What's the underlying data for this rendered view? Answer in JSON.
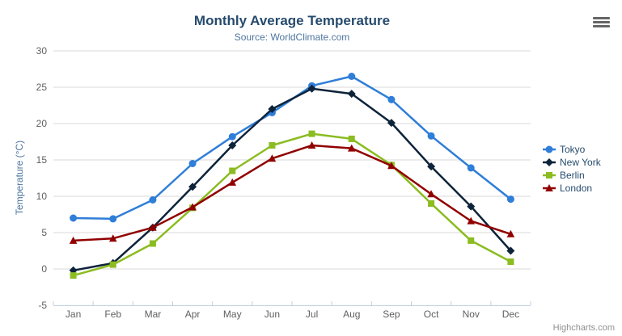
{
  "export_menu": {
    "icon": "hamburger-icon"
  },
  "credits": {
    "label": "Highcharts.com"
  },
  "chart_data": {
    "type": "line",
    "title": "Monthly Average Temperature",
    "subtitle": "Source: WorldClimate.com",
    "categories": [
      "Jan",
      "Feb",
      "Mar",
      "Apr",
      "May",
      "Jun",
      "Jul",
      "Aug",
      "Sep",
      "Oct",
      "Nov",
      "Dec"
    ],
    "series": [
      {
        "name": "Tokyo",
        "color": "#2f7ed8",
        "marker": "circle",
        "values": [
          7.0,
          6.9,
          9.5,
          14.5,
          18.2,
          21.5,
          25.2,
          26.5,
          23.3,
          18.3,
          13.9,
          9.6
        ]
      },
      {
        "name": "New York",
        "color": "#0d233a",
        "marker": "diamond",
        "values": [
          -0.2,
          0.8,
          5.7,
          11.3,
          17.0,
          22.0,
          24.8,
          24.1,
          20.1,
          14.1,
          8.6,
          2.5
        ]
      },
      {
        "name": "Berlin",
        "color": "#8bbc21",
        "marker": "square",
        "values": [
          -0.9,
          0.6,
          3.5,
          8.4,
          13.5,
          17.0,
          18.6,
          17.9,
          14.3,
          9.0,
          3.9,
          1.0
        ]
      },
      {
        "name": "London",
        "color": "#910000",
        "marker": "triangle",
        "values": [
          3.9,
          4.2,
          5.7,
          8.5,
          11.9,
          15.2,
          17.0,
          16.6,
          14.2,
          10.3,
          6.6,
          4.8
        ]
      }
    ],
    "xlabel": "",
    "ylabel": "Temperature (°C)",
    "ylim": [
      -5,
      30
    ],
    "ytick_step": 5,
    "grid": true,
    "legend_position": "right",
    "grid_color": "#d8d8d8",
    "axis_line_color": "#c0d0e0"
  }
}
